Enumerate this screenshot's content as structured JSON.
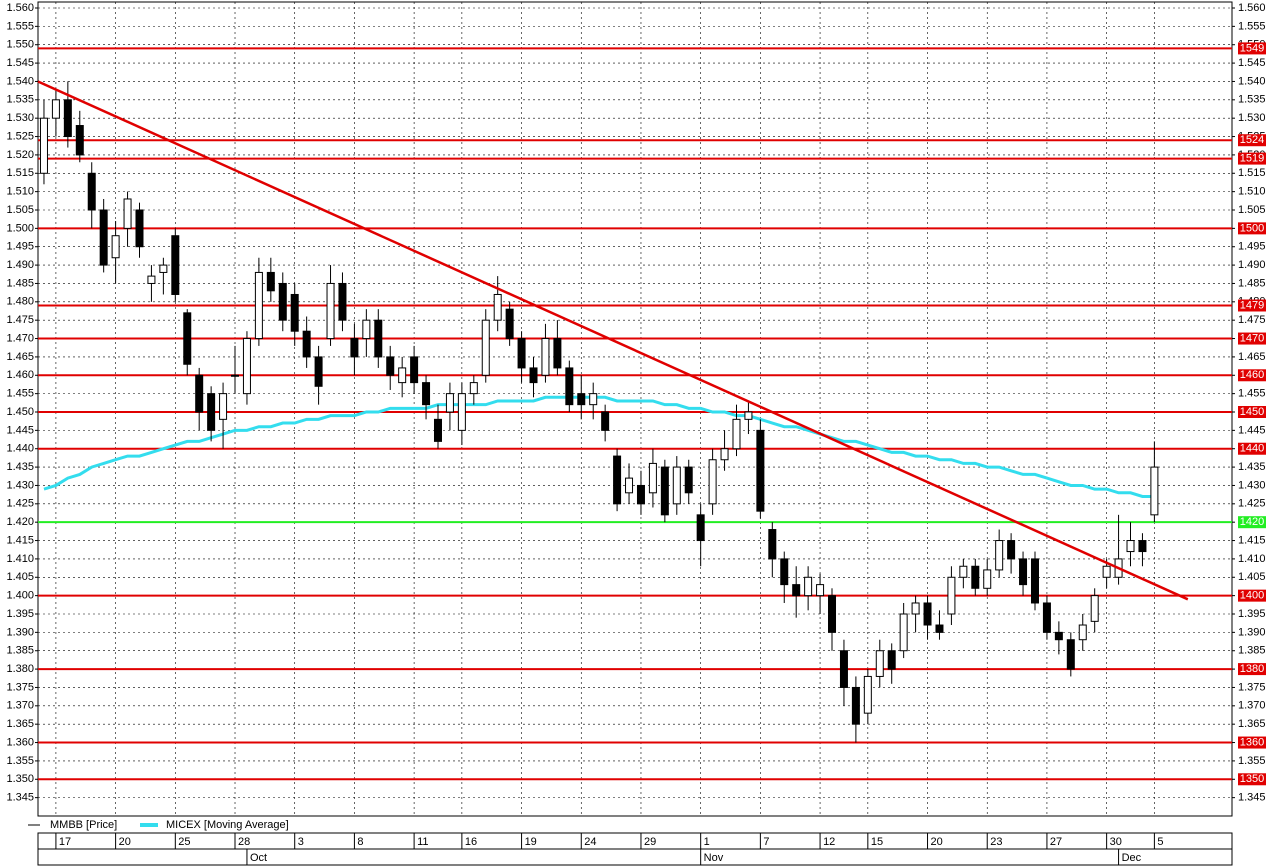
{
  "chart_data": {
    "type": "candlestick",
    "series": [
      {
        "name": "MMBB [Price]",
        "color": "#000000",
        "values": [
          [
            1515,
            1535,
            1512,
            1530
          ],
          [
            1530,
            1538,
            1525,
            1535
          ],
          [
            1535,
            1540,
            1522,
            1525
          ],
          [
            1528,
            1532,
            1518,
            1520
          ],
          [
            1515,
            1518,
            1500,
            1505
          ],
          [
            1505,
            1508,
            1488,
            1490
          ],
          [
            1492,
            1502,
            1485,
            1498
          ],
          [
            1500,
            1510,
            1495,
            1508
          ],
          [
            1505,
            1507,
            1492,
            1495
          ],
          [
            1485,
            1490,
            1480,
            1487
          ],
          [
            1488,
            1492,
            1482,
            1490
          ],
          [
            1498,
            1500,
            1480,
            1482
          ],
          [
            1477,
            1478,
            1460,
            1463
          ],
          [
            1460,
            1462,
            1445,
            1450
          ],
          [
            1455,
            1457,
            1442,
            1445
          ],
          [
            1448,
            1458,
            1440,
            1455
          ],
          [
            1460,
            1468,
            1455,
            1460
          ],
          [
            1455,
            1472,
            1452,
            1470
          ],
          [
            1470,
            1492,
            1468,
            1488
          ],
          [
            1488,
            1492,
            1480,
            1483
          ],
          [
            1485,
            1488,
            1472,
            1475
          ],
          [
            1482,
            1485,
            1468,
            1472
          ],
          [
            1472,
            1476,
            1462,
            1465
          ],
          [
            1465,
            1468,
            1452,
            1457
          ],
          [
            1470,
            1490,
            1468,
            1485
          ],
          [
            1485,
            1488,
            1472,
            1475
          ],
          [
            1470,
            1474,
            1460,
            1465
          ],
          [
            1470,
            1478,
            1465,
            1475
          ],
          [
            1475,
            1478,
            1462,
            1465
          ],
          [
            1465,
            1468,
            1456,
            1460
          ],
          [
            1458,
            1465,
            1454,
            1462
          ],
          [
            1465,
            1468,
            1455,
            1458
          ],
          [
            1458,
            1460,
            1448,
            1452
          ],
          [
            1448,
            1452,
            1440,
            1442
          ],
          [
            1450,
            1458,
            1445,
            1455
          ],
          [
            1445,
            1458,
            1441,
            1455
          ],
          [
            1455,
            1460,
            1452,
            1458
          ],
          [
            1460,
            1478,
            1458,
            1475
          ],
          [
            1475,
            1487,
            1472,
            1482
          ],
          [
            1478,
            1480,
            1468,
            1470
          ],
          [
            1470,
            1472,
            1458,
            1462
          ],
          [
            1462,
            1465,
            1454,
            1458
          ],
          [
            1460,
            1474,
            1458,
            1470
          ],
          [
            1470,
            1475,
            1460,
            1462
          ],
          [
            1462,
            1464,
            1450,
            1452
          ],
          [
            1455,
            1460,
            1448,
            1452
          ],
          [
            1452,
            1458,
            1448,
            1455
          ],
          [
            1450,
            1452,
            1442,
            1445
          ],
          [
            1438,
            1440,
            1423,
            1425
          ],
          [
            1428,
            1436,
            1425,
            1432
          ],
          [
            1430,
            1434,
            1422,
            1425
          ],
          [
            1428,
            1440,
            1424,
            1436
          ],
          [
            1435,
            1437,
            1420,
            1422
          ],
          [
            1425,
            1438,
            1422,
            1435
          ],
          [
            1435,
            1437,
            1425,
            1428
          ],
          [
            1422,
            1425,
            1408,
            1415
          ],
          [
            1425,
            1440,
            1422,
            1437
          ],
          [
            1437,
            1445,
            1434,
            1440
          ],
          [
            1440,
            1452,
            1438,
            1448
          ],
          [
            1448,
            1453,
            1444,
            1450
          ],
          [
            1445,
            1448,
            1421,
            1423
          ],
          [
            1418,
            1420,
            1405,
            1410
          ],
          [
            1410,
            1412,
            1398,
            1403
          ],
          [
            1403,
            1408,
            1394,
            1400
          ],
          [
            1400,
            1408,
            1396,
            1405
          ],
          [
            1400,
            1406,
            1395,
            1403
          ],
          [
            1400,
            1402,
            1385,
            1390
          ],
          [
            1385,
            1388,
            1370,
            1375
          ],
          [
            1375,
            1378,
            1360,
            1365
          ],
          [
            1368,
            1380,
            1365,
            1378
          ],
          [
            1378,
            1388,
            1375,
            1385
          ],
          [
            1385,
            1387,
            1376,
            1380
          ],
          [
            1385,
            1398,
            1383,
            1395
          ],
          [
            1395,
            1400,
            1390,
            1398
          ],
          [
            1398,
            1400,
            1388,
            1392
          ],
          [
            1392,
            1396,
            1388,
            1390
          ],
          [
            1395,
            1408,
            1392,
            1405
          ],
          [
            1405,
            1410,
            1402,
            1408
          ],
          [
            1408,
            1410,
            1400,
            1402
          ],
          [
            1402,
            1410,
            1400,
            1407
          ],
          [
            1407,
            1418,
            1405,
            1415
          ],
          [
            1415,
            1417,
            1406,
            1410
          ],
          [
            1410,
            1412,
            1400,
            1403
          ],
          [
            1410,
            1412,
            1396,
            1398
          ],
          [
            1398,
            1400,
            1388,
            1390
          ],
          [
            1390,
            1393,
            1384,
            1388
          ],
          [
            1388,
            1390,
            1378,
            1380
          ],
          [
            1388,
            1395,
            1385,
            1392
          ],
          [
            1393,
            1402,
            1390,
            1400
          ],
          [
            1405,
            1410,
            1402,
            1408
          ],
          [
            1405,
            1422,
            1403,
            1410
          ],
          [
            1412,
            1420,
            1408,
            1415
          ],
          [
            1415,
            1417,
            1408,
            1412
          ],
          [
            1422,
            1442,
            1420,
            1435
          ]
        ]
      },
      {
        "name": "MICEX [Moving Average]",
        "color": "#33ddee",
        "values": [
          1429,
          1430,
          1432,
          1433,
          1435,
          1436,
          1437,
          1438,
          1438,
          1439,
          1440,
          1441,
          1442,
          1442,
          1443,
          1444,
          1445,
          1445,
          1446,
          1446,
          1447,
          1447,
          1448,
          1448,
          1449,
          1449,
          1449,
          1450,
          1450,
          1451,
          1451,
          1451,
          1451,
          1452,
          1452,
          1452,
          1452,
          1452,
          1453,
          1453,
          1453,
          1453,
          1454,
          1454,
          1454,
          1454,
          1454,
          1454,
          1453,
          1453,
          1453,
          1453,
          1452,
          1452,
          1451,
          1451,
          1450,
          1450,
          1449,
          1449,
          1448,
          1447,
          1446,
          1446,
          1445,
          1444,
          1443,
          1442,
          1442,
          1441,
          1440,
          1439,
          1439,
          1438,
          1438,
          1437,
          1437,
          1436,
          1436,
          1435,
          1435,
          1434,
          1433,
          1433,
          1432,
          1431,
          1430,
          1430,
          1429,
          1429,
          1428,
          1428,
          1427,
          1427
        ]
      }
    ],
    "xlim": [
      -0.5,
      99.5
    ],
    "xticks": [
      {
        "value": 1,
        "label": "17"
      },
      {
        "value": 6,
        "label": "20"
      },
      {
        "value": 11,
        "label": "25"
      },
      {
        "value": 16,
        "label": "28"
      },
      {
        "value": 21,
        "label": "3"
      },
      {
        "value": 26,
        "label": "8"
      },
      {
        "value": 31,
        "label": "11"
      },
      {
        "value": 35,
        "label": "16"
      },
      {
        "value": 40,
        "label": "19"
      },
      {
        "value": 45,
        "label": "24"
      },
      {
        "value": 50,
        "label": "29"
      },
      {
        "value": 55,
        "label": "1"
      },
      {
        "value": 60,
        "label": "7"
      },
      {
        "value": 65,
        "label": "12"
      },
      {
        "value": 69,
        "label": "15"
      },
      {
        "value": 74,
        "label": "20"
      },
      {
        "value": 79,
        "label": "23"
      },
      {
        "value": 84,
        "label": "27"
      },
      {
        "value": 89,
        "label": "30"
      },
      {
        "value": 93,
        "label": "5"
      }
    ],
    "months": [
      {
        "value": 17,
        "label": "Oct"
      },
      {
        "value": 55,
        "label": "Nov"
      },
      {
        "value": 90,
        "label": "Dec"
      }
    ],
    "ylim": [
      1340,
      1560
    ],
    "yticks": [
      {
        "value": 1560,
        "label": "1.560"
      },
      {
        "value": 1555,
        "label": "1.555"
      },
      {
        "value": 1550,
        "label": "1.550"
      },
      {
        "value": 1545,
        "label": "1.545"
      },
      {
        "value": 1540,
        "label": "1.540"
      },
      {
        "value": 1535,
        "label": "1.535"
      },
      {
        "value": 1530,
        "label": "1.530"
      },
      {
        "value": 1525,
        "label": "1.525"
      },
      {
        "value": 1520,
        "label": "1.520"
      },
      {
        "value": 1515,
        "label": "1.515"
      },
      {
        "value": 1510,
        "label": "1.510"
      },
      {
        "value": 1505,
        "label": "1.505"
      },
      {
        "value": 1500,
        "label": "1.500"
      },
      {
        "value": 1495,
        "label": "1.495"
      },
      {
        "value": 1490,
        "label": "1.490"
      },
      {
        "value": 1485,
        "label": "1.485"
      },
      {
        "value": 1480,
        "label": "1.480"
      },
      {
        "value": 1475,
        "label": "1.475"
      },
      {
        "value": 1470,
        "label": "1.470"
      },
      {
        "value": 1465,
        "label": "1.465"
      },
      {
        "value": 1460,
        "label": "1.460"
      },
      {
        "value": 1455,
        "label": "1.455"
      },
      {
        "value": 1450,
        "label": "1.450"
      },
      {
        "value": 1445,
        "label": "1.445"
      },
      {
        "value": 1440,
        "label": "1.440"
      },
      {
        "value": 1435,
        "label": "1.435"
      },
      {
        "value": 1430,
        "label": "1.430"
      },
      {
        "value": 1425,
        "label": "1.425"
      },
      {
        "value": 1420,
        "label": "1.420"
      },
      {
        "value": 1415,
        "label": "1.415"
      },
      {
        "value": 1410,
        "label": "1.410"
      },
      {
        "value": 1405,
        "label": "1.405"
      },
      {
        "value": 1400,
        "label": "1.400"
      },
      {
        "value": 1395,
        "label": "1.395"
      },
      {
        "value": 1390,
        "label": "1.390"
      },
      {
        "value": 1385,
        "label": "1.385"
      },
      {
        "value": 1380,
        "label": "1.380"
      },
      {
        "value": 1375,
        "label": "1.375"
      },
      {
        "value": 1370,
        "label": "1.370"
      },
      {
        "value": 1365,
        "label": "1.365"
      },
      {
        "value": 1360,
        "label": "1.360"
      },
      {
        "value": 1355,
        "label": "1.355"
      },
      {
        "value": 1350,
        "label": "1.350"
      },
      {
        "value": 1345,
        "label": "1.345"
      }
    ],
    "levels": [
      {
        "value": 1549,
        "color": "#e00000"
      },
      {
        "value": 1524,
        "color": "#e00000"
      },
      {
        "value": 1519,
        "color": "#e00000"
      },
      {
        "value": 1500,
        "color": "#e00000"
      },
      {
        "value": 1479,
        "color": "#e00000"
      },
      {
        "value": 1470,
        "color": "#e00000"
      },
      {
        "value": 1460,
        "color": "#e00000"
      },
      {
        "value": 1450,
        "color": "#e00000"
      },
      {
        "value": 1440,
        "color": "#e00000"
      },
      {
        "value": 1420,
        "color": "#22ee22"
      },
      {
        "value": 1400,
        "color": "#e00000"
      },
      {
        "value": 1380,
        "color": "#e00000"
      },
      {
        "value": 1360,
        "color": "#e00000"
      },
      {
        "value": 1350,
        "color": "#e00000"
      }
    ],
    "trendline": {
      "x": [
        -0.5,
        95.8
      ],
      "y": [
        1540,
        1399
      ],
      "color": "#e00000"
    },
    "grid": true
  }
}
